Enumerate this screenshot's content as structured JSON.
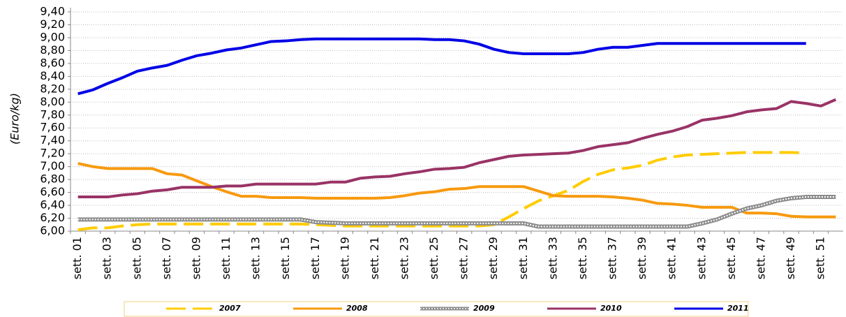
{
  "chart_data": {
    "type": "line",
    "y_label": "(Euro/kg)",
    "categories": [
      "sett. 01",
      null,
      "sett. 03",
      null,
      "sett. 05",
      null,
      "sett. 07",
      null,
      "sett. 09",
      null,
      "sett. 11",
      null,
      "sett. 13",
      null,
      "sett. 15",
      null,
      "sett. 17",
      null,
      "sett. 19",
      null,
      "sett. 21",
      null,
      "sett. 23",
      null,
      "sett. 25",
      null,
      "sett. 27",
      null,
      "sett. 29",
      null,
      "sett. 31",
      null,
      "sett. 33",
      null,
      "sett. 35",
      null,
      "sett. 37",
      null,
      "sett. 39",
      null,
      "sett. 41",
      null,
      "sett. 43",
      null,
      "sett. 45",
      null,
      "sett. 47",
      null,
      "sett. 49",
      null,
      "sett. 51",
      null
    ],
    "series": [
      {
        "name": "2007",
        "color": "#ffcc00",
        "style": "dashed",
        "values": [
          6.02,
          6.05,
          6.05,
          6.08,
          6.1,
          6.11,
          6.11,
          6.11,
          6.11,
          6.11,
          6.11,
          6.11,
          6.11,
          6.11,
          6.11,
          6.11,
          6.1,
          6.09,
          6.08,
          6.08,
          6.08,
          6.08,
          6.08,
          6.08,
          6.08,
          6.08,
          6.08,
          6.08,
          6.1,
          6.22,
          6.35,
          6.47,
          6.55,
          6.63,
          6.77,
          6.88,
          6.95,
          6.98,
          7.02,
          7.1,
          7.15,
          7.18,
          7.19,
          7.2,
          7.21,
          7.22,
          7.22,
          7.22,
          7.22,
          7.21,
          null,
          null
        ]
      },
      {
        "name": "2008",
        "color": "#f79a0f",
        "style": "solid",
        "values": [
          7.05,
          7.0,
          6.97,
          6.97,
          6.97,
          6.97,
          6.89,
          6.87,
          6.78,
          6.69,
          6.61,
          6.54,
          6.54,
          6.52,
          6.52,
          6.52,
          6.51,
          6.51,
          6.51,
          6.51,
          6.51,
          6.52,
          6.55,
          6.59,
          6.61,
          6.65,
          6.66,
          6.69,
          6.69,
          6.69,
          6.69,
          6.62,
          6.55,
          6.54,
          6.54,
          6.54,
          6.53,
          6.51,
          6.48,
          6.43,
          6.42,
          6.4,
          6.37,
          6.37,
          6.37,
          6.28,
          6.28,
          6.27,
          6.23,
          6.22,
          6.22,
          6.22
        ]
      },
      {
        "name": "2009",
        "color": "#8c8c8c",
        "style": "dotted",
        "values": [
          6.18,
          6.18,
          6.18,
          6.18,
          6.18,
          6.18,
          6.18,
          6.18,
          6.18,
          6.18,
          6.18,
          6.18,
          6.18,
          6.18,
          6.18,
          6.18,
          6.14,
          6.13,
          6.12,
          6.12,
          6.12,
          6.12,
          6.12,
          6.12,
          6.12,
          6.12,
          6.12,
          6.12,
          6.12,
          6.12,
          6.12,
          6.07,
          6.07,
          6.07,
          6.07,
          6.07,
          6.07,
          6.07,
          6.07,
          6.07,
          6.07,
          6.07,
          6.12,
          6.18,
          6.27,
          6.35,
          6.4,
          6.47,
          6.51,
          6.53,
          6.53,
          6.53
        ]
      },
      {
        "name": "2010",
        "color": "#993366",
        "style": "solid",
        "values": [
          6.53,
          6.53,
          6.53,
          6.56,
          6.58,
          6.62,
          6.64,
          6.68,
          6.68,
          6.68,
          6.7,
          6.7,
          6.73,
          6.73,
          6.73,
          6.73,
          6.73,
          6.76,
          6.76,
          6.82,
          6.84,
          6.85,
          6.89,
          6.92,
          6.96,
          6.97,
          6.99,
          7.06,
          7.11,
          7.16,
          7.18,
          7.19,
          7.2,
          7.21,
          7.25,
          7.31,
          7.34,
          7.37,
          7.44,
          7.5,
          7.55,
          7.62,
          7.72,
          7.75,
          7.79,
          7.85,
          7.88,
          7.9,
          8.01,
          7.98,
          7.94,
          8.04
        ]
      },
      {
        "name": "2011",
        "color": "#0000e6",
        "style": "solid",
        "values": [
          8.13,
          8.19,
          8.29,
          8.38,
          8.48,
          8.53,
          8.57,
          8.65,
          8.72,
          8.76,
          8.81,
          8.84,
          8.89,
          8.94,
          8.95,
          8.97,
          8.98,
          8.98,
          8.98,
          8.98,
          8.98,
          8.98,
          8.98,
          8.98,
          8.97,
          8.97,
          8.95,
          8.9,
          8.82,
          8.77,
          8.75,
          8.75,
          8.75,
          8.75,
          8.77,
          8.82,
          8.85,
          8.85,
          8.88,
          8.91,
          8.91,
          8.91,
          8.91,
          8.91,
          8.91,
          8.91,
          8.91,
          8.91,
          8.91,
          8.91,
          null,
          null
        ]
      }
    ],
    "ylim": [
      6.0,
      9.4
    ],
    "yticks": [
      {
        "value": 6.0,
        "label": "6,00"
      },
      {
        "value": 6.2,
        "label": "6,20"
      },
      {
        "value": 6.4,
        "label": "6,40"
      },
      {
        "value": 6.6,
        "label": "6,60"
      },
      {
        "value": 6.8,
        "label": "6,80"
      },
      {
        "value": 7.0,
        "label": "7,00"
      },
      {
        "value": 7.2,
        "label": "7,20"
      },
      {
        "value": 7.4,
        "label": "7,40"
      },
      {
        "value": 7.6,
        "label": "7,60"
      },
      {
        "value": 7.8,
        "label": "7,80"
      },
      {
        "value": 8.0,
        "label": "8,00"
      },
      {
        "value": 8.2,
        "label": "8,20"
      },
      {
        "value": 8.4,
        "label": "8,40"
      },
      {
        "value": 8.6,
        "label": "8,60"
      },
      {
        "value": 8.8,
        "label": "8,80"
      },
      {
        "value": 9.0,
        "label": "9,00"
      },
      {
        "value": 9.2,
        "label": "9,20"
      },
      {
        "value": 9.4,
        "label": "9,40"
      }
    ],
    "grid": true
  }
}
